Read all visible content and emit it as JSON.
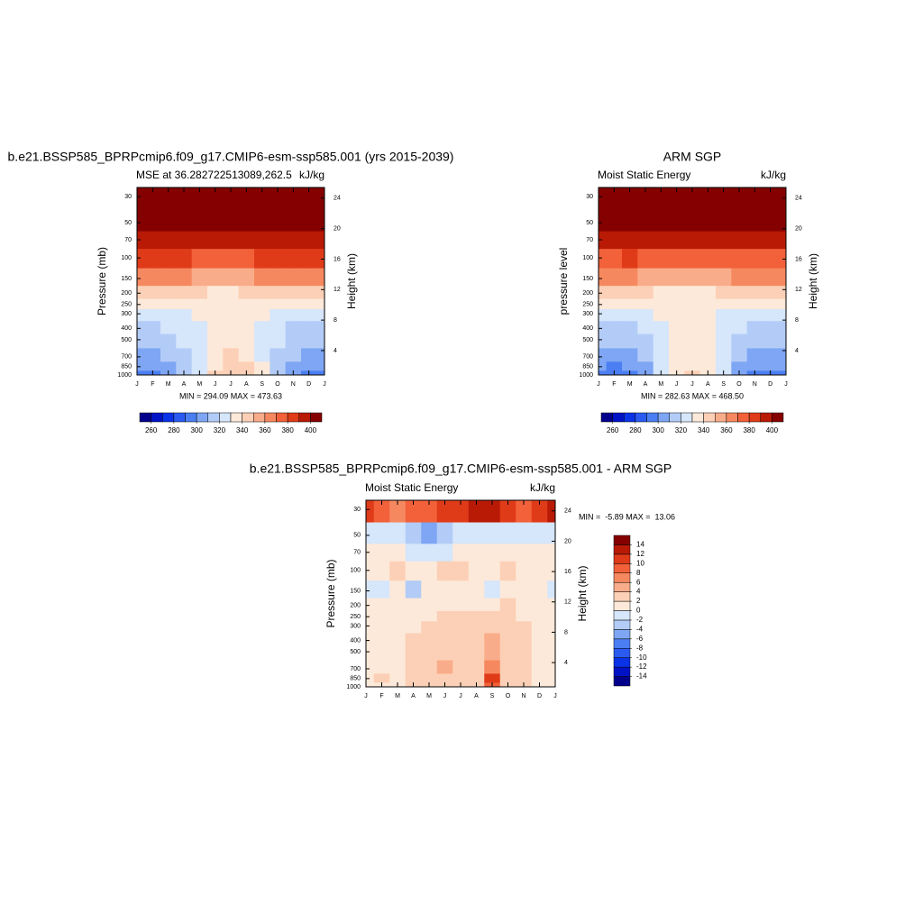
{
  "chart_data": [
    {
      "type": "contour",
      "title": "b.e21.BSSP585_BPRPcmip6.f09_g17.CMIP6-esm-ssp585.001 (yrs 2015-2039)",
      "subtitle_left": "MSE at 36.282722513089,262.5",
      "subtitle_right": "kJ/kg",
      "ylabel": "Pressure (mb)",
      "y2label": "Height (km)",
      "summary": "MIN = 294.09 MAX = 473.63",
      "categories": [
        "J",
        "F",
        "M",
        "A",
        "M",
        "J",
        "J",
        "A",
        "S",
        "O",
        "N",
        "D",
        "J"
      ],
      "yscale": "log",
      "ylim": [
        1000,
        25
      ],
      "yticks": [
        30,
        50,
        70,
        100,
        150,
        200,
        250,
        300,
        400,
        500,
        700,
        850,
        1000
      ],
      "y2lim": [
        0.8,
        25.4
      ],
      "y2ticks": [
        4,
        8,
        12,
        16,
        20,
        24
      ],
      "z": [
        [
          440,
          440,
          440,
          440,
          440,
          440,
          440,
          440,
          440,
          440,
          440,
          440,
          440
        ],
        [
          420,
          420,
          420,
          420,
          420,
          420,
          420,
          420,
          420,
          420,
          420,
          420,
          420
        ],
        [
          398,
          398,
          399,
          397,
          395,
          394,
          393,
          394,
          396,
          398,
          397,
          398,
          398
        ],
        [
          380,
          381,
          382,
          380,
          378,
          377,
          377,
          378,
          380,
          381,
          381,
          380,
          380
        ],
        [
          362,
          363,
          362,
          360,
          358,
          357,
          357,
          358,
          360,
          362,
          363,
          362,
          362
        ],
        [
          346,
          346,
          345,
          342,
          340,
          339,
          339,
          340,
          342,
          344,
          345,
          346,
          346
        ],
        [
          334,
          334,
          335,
          336,
          336,
          337,
          337,
          337,
          336,
          335,
          334,
          334,
          334
        ],
        [
          325,
          325,
          326,
          328,
          331,
          333,
          334,
          333,
          330,
          327,
          326,
          325,
          325
        ],
        [
          318,
          318,
          320,
          323,
          328,
          333,
          335,
          334,
          329,
          322,
          319,
          318,
          318
        ],
        [
          314,
          314,
          316,
          320,
          327,
          334,
          336,
          335,
          328,
          320,
          315,
          314,
          314
        ],
        [
          308,
          307,
          310,
          315,
          325,
          336,
          340,
          338,
          328,
          316,
          310,
          308,
          308
        ],
        [
          303,
          302,
          306,
          312,
          325,
          338,
          344,
          341,
          330,
          312,
          305,
          303,
          303
        ],
        [
          298,
          297,
          302,
          310,
          326,
          340,
          347,
          343,
          332,
          310,
          300,
          298,
          298
        ]
      ],
      "colorbar": {
        "orientation": "horizontal",
        "lim": [
          250,
          410
        ],
        "ticks": [
          260,
          280,
          300,
          320,
          340,
          360,
          380,
          400
        ],
        "colors": [
          "#03008c",
          "#0012c6",
          "#0a32e6",
          "#2a5af0",
          "#4a7ef2",
          "#7ea6f4",
          "#b3ccf7",
          "#d6e6fb",
          "#fde9d9",
          "#fcd0b6",
          "#f9ac8a",
          "#f6885f",
          "#f2613a",
          "#e03b19",
          "#b81a06",
          "#850000"
        ]
      }
    },
    {
      "type": "contour",
      "title": "ARM SGP",
      "subtitle_left": "Moist Static Energy",
      "subtitle_right": "kJ/kg",
      "ylabel": "pressure level",
      "y2label": "Height (km)",
      "summary": "MIN = 282.63 MAX = 468.50",
      "categories": [
        "J",
        "F",
        "M",
        "A",
        "M",
        "J",
        "J",
        "A",
        "S",
        "O",
        "N",
        "D",
        "J"
      ],
      "yscale": "log",
      "ylim": [
        1000,
        25
      ],
      "yticks": [
        30,
        50,
        70,
        100,
        150,
        200,
        250,
        300,
        400,
        500,
        700,
        850,
        1000
      ],
      "y2lim": [
        0.8,
        25.4
      ],
      "y2ticks": [
        4,
        8,
        12,
        16,
        20,
        24
      ],
      "z": [
        [
          440,
          440,
          440,
          440,
          440,
          440,
          440,
          440,
          440,
          440,
          440,
          440,
          440
        ],
        [
          420,
          420,
          420,
          420,
          420,
          420,
          420,
          420,
          420,
          420,
          420,
          420,
          420
        ],
        [
          396,
          397,
          397,
          395,
          393,
          392,
          391,
          392,
          394,
          396,
          396,
          396,
          396
        ],
        [
          378,
          379,
          380,
          378,
          376,
          375,
          375,
          376,
          378,
          379,
          379,
          378,
          378
        ],
        [
          360,
          361,
          360,
          358,
          356,
          355,
          355,
          356,
          358,
          360,
          361,
          360,
          360
        ],
        [
          344,
          344,
          343,
          340,
          338,
          337,
          337,
          338,
          340,
          342,
          343,
          344,
          344
        ],
        [
          333,
          333,
          333,
          334,
          335,
          336,
          336,
          336,
          334,
          333,
          333,
          333,
          333
        ],
        [
          324,
          324,
          325,
          327,
          330,
          332,
          333,
          332,
          329,
          326,
          325,
          324,
          324
        ],
        [
          316,
          316,
          318,
          322,
          327,
          331,
          333,
          332,
          327,
          320,
          317,
          316,
          316
        ],
        [
          312,
          312,
          314,
          318,
          325,
          331,
          333,
          332,
          325,
          317,
          313,
          312,
          312
        ],
        [
          305,
          304,
          307,
          312,
          322,
          332,
          334,
          333,
          322,
          311,
          306,
          305,
          305
        ],
        [
          300,
          299,
          303,
          309,
          322,
          333,
          338,
          335,
          322,
          307,
          301,
          300,
          300
        ],
        [
          295,
          293,
          298,
          306,
          323,
          335,
          341,
          337,
          325,
          304,
          296,
          294,
          295
        ]
      ],
      "colorbar": {
        "orientation": "horizontal",
        "lim": [
          250,
          410
        ],
        "ticks": [
          260,
          280,
          300,
          320,
          340,
          360,
          380,
          400
        ],
        "colors": [
          "#03008c",
          "#0012c6",
          "#0a32e6",
          "#2a5af0",
          "#4a7ef2",
          "#7ea6f4",
          "#b3ccf7",
          "#d6e6fb",
          "#fde9d9",
          "#fcd0b6",
          "#f9ac8a",
          "#f6885f",
          "#f2613a",
          "#e03b19",
          "#b81a06",
          "#850000"
        ]
      }
    },
    {
      "type": "contour",
      "title": "b.e21.BSSP585_BPRPcmip6.f09_g17.CMIP6-esm-ssp585.001 - ARM SGP",
      "subtitle_left": "Moist Static Energy",
      "subtitle_right": "kJ/kg",
      "ylabel": "Pressure (mb)",
      "y2label": "Height (km)",
      "summary": "MIN =  -5.89 MAX =  13.06",
      "categories": [
        "J",
        "F",
        "M",
        "A",
        "M",
        "J",
        "J",
        "A",
        "S",
        "O",
        "N",
        "D",
        "J"
      ],
      "yscale": "log",
      "ylim": [
        1000,
        25
      ],
      "yticks": [
        30,
        50,
        70,
        100,
        150,
        200,
        250,
        300,
        400,
        500,
        700,
        850,
        1000
      ],
      "y2lim": [
        0.8,
        25.4
      ],
      "y2ticks": [
        4,
        8,
        12,
        16,
        20,
        24
      ],
      "z": [
        [
          11,
          9,
          7,
          8,
          9,
          11,
          10,
          12,
          13,
          10,
          9,
          10,
          12
        ],
        [
          -1,
          -1,
          -1,
          -3,
          -5,
          -3,
          -1,
          -1,
          -1,
          -1,
          -1,
          -1,
          -1
        ],
        [
          1,
          1,
          1,
          -1,
          -2,
          -1,
          0.5,
          1,
          1,
          1,
          1,
          0.5,
          1
        ],
        [
          1,
          1,
          3,
          1,
          1,
          3,
          3,
          1,
          1,
          3,
          1,
          1,
          1
        ],
        [
          -1,
          -1,
          1,
          -3,
          1,
          1,
          1,
          1,
          -1,
          1,
          1,
          1,
          -1
        ],
        [
          1,
          1,
          1,
          1,
          1,
          1,
          1,
          1,
          1,
          3,
          1,
          1,
          1
        ],
        [
          1,
          1,
          1,
          1,
          1,
          3,
          3,
          3,
          3,
          3,
          1,
          1,
          1
        ],
        [
          1,
          1,
          1,
          1,
          3,
          3,
          3,
          3,
          3,
          3,
          3,
          1,
          1
        ],
        [
          1,
          1,
          1,
          2,
          3,
          3,
          3,
          3,
          5,
          3,
          3,
          1,
          1
        ],
        [
          1,
          1,
          1,
          3,
          3,
          3,
          3,
          3,
          5,
          3,
          3,
          1,
          1
        ],
        [
          1,
          1,
          1,
          3,
          3,
          5,
          3,
          3,
          7,
          3,
          3,
          1,
          1
        ],
        [
          1,
          3,
          1,
          3,
          3,
          3,
          3,
          3,
          11,
          3,
          3,
          1,
          1
        ],
        [
          1,
          1,
          1,
          3,
          3,
          3,
          3,
          3,
          9,
          3,
          3,
          1,
          1
        ]
      ],
      "colorbar": {
        "orientation": "vertical",
        "lim": [
          -16,
          16
        ],
        "ticks": [
          -14,
          -12,
          -10,
          -8,
          -6,
          -4,
          -2,
          0,
          2,
          4,
          6,
          8,
          10,
          12,
          14
        ],
        "colors": [
          "#03008c",
          "#0012c6",
          "#0a32e6",
          "#2a5af0",
          "#4a7ef2",
          "#7ea6f4",
          "#b3ccf7",
          "#d6e6fb",
          "#fde9d9",
          "#fcd0b6",
          "#f9ac8a",
          "#f6885f",
          "#f2613a",
          "#e03b19",
          "#b81a06",
          "#850000"
        ]
      }
    }
  ]
}
